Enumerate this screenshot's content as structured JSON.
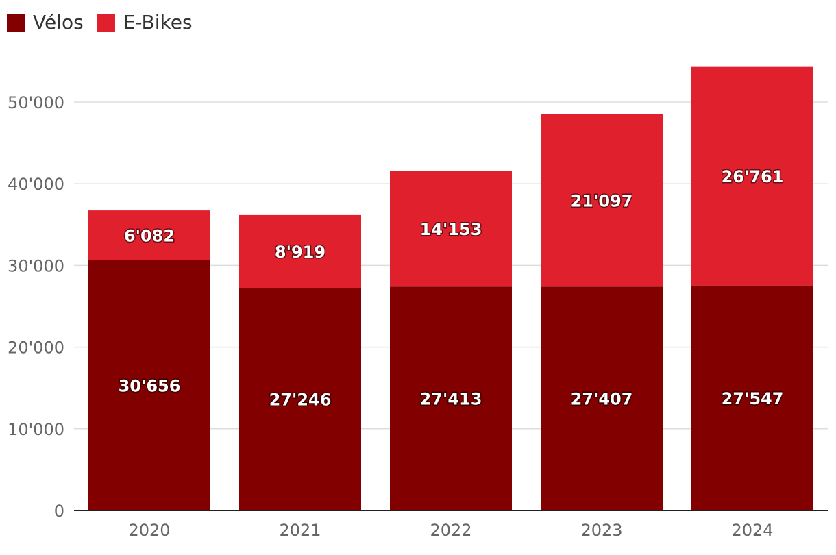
{
  "chart_data": {
    "type": "bar",
    "stacked": true,
    "categories": [
      "2020",
      "2021",
      "2022",
      "2023",
      "2024"
    ],
    "series": [
      {
        "name": "Vélos",
        "color": "#830000",
        "values": [
          30656,
          27246,
          27413,
          27407,
          27547
        ],
        "labels": [
          "30'656",
          "27'246",
          "27'413",
          "27'407",
          "27'547"
        ]
      },
      {
        "name": "E-Bikes",
        "color": "#e1202d",
        "values": [
          6082,
          8919,
          14153,
          21097,
          26761
        ],
        "labels": [
          "6'082",
          "8'919",
          "14'153",
          "21'097",
          "26'761"
        ]
      }
    ],
    "y_ticks": [
      0,
      10000,
      20000,
      30000,
      40000,
      50000
    ],
    "y_tick_labels": [
      "0",
      "10'000",
      "20'000",
      "30'000",
      "40'000",
      "50'000"
    ],
    "ylim": [
      0,
      55000
    ],
    "grid": true,
    "legend": "top-left",
    "title": "",
    "xlabel": "",
    "ylabel": ""
  }
}
